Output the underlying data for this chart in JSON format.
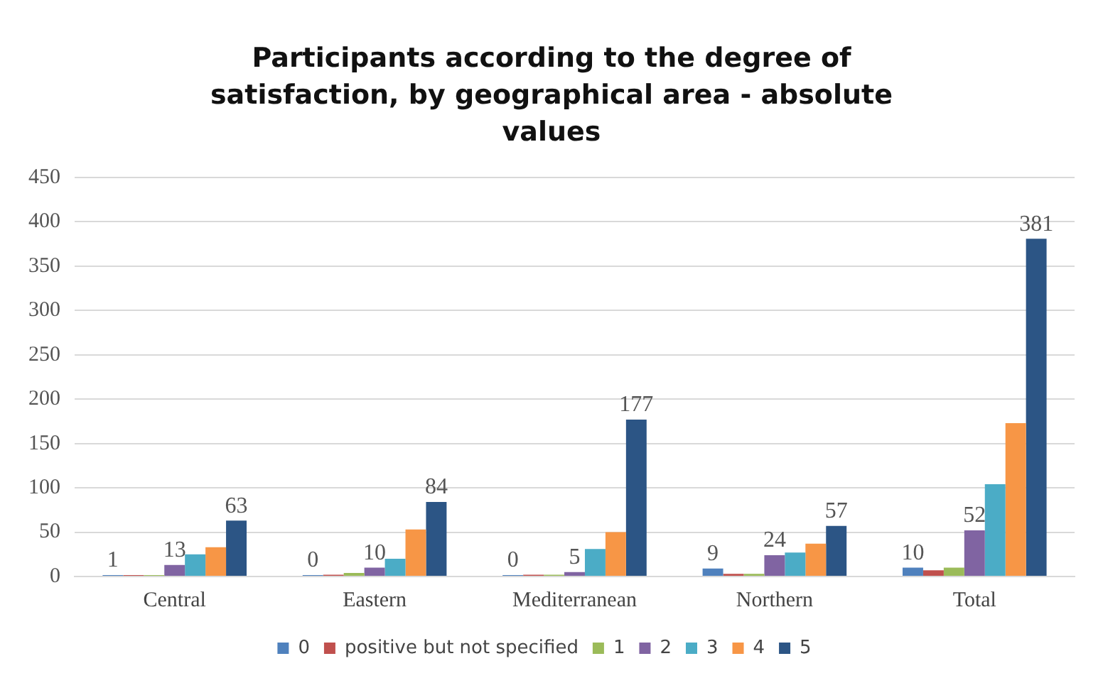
{
  "chart_data": {
    "type": "bar",
    "title": "Participants according to the degree of satisfaction, by geographical area - absolute values",
    "categories": [
      "Central",
      "Eastern",
      "Mediterranean",
      "Northern",
      "Total"
    ],
    "series": [
      {
        "name": "0",
        "color": "#4f81bd",
        "values": [
          1,
          0,
          0,
          9,
          10
        ],
        "value_labels": [
          "1",
          "0",
          "0",
          "9",
          "10"
        ]
      },
      {
        "name": "positive but not specified",
        "color": "#c0504d",
        "values": [
          0,
          2,
          2,
          3,
          7
        ]
      },
      {
        "name": "1",
        "color": "#9bbb59",
        "values": [
          1,
          4,
          2,
          3,
          10
        ]
      },
      {
        "name": "2",
        "color": "#8064a2",
        "values": [
          13,
          10,
          5,
          24,
          52
        ],
        "value_labels": [
          "13",
          "10",
          "5",
          "24",
          "52"
        ]
      },
      {
        "name": "3",
        "color": "#4bacc6",
        "values": [
          25,
          20,
          31,
          27,
          104
        ]
      },
      {
        "name": "4",
        "color": "#f79646",
        "values": [
          33,
          53,
          50,
          37,
          173
        ]
      },
      {
        "name": "5",
        "color": "#2c5585",
        "values": [
          63,
          84,
          177,
          57,
          381
        ],
        "value_labels": [
          "63",
          "84",
          "177",
          "57",
          "381"
        ]
      }
    ],
    "ylim": [
      0,
      450
    ],
    "yticks": [
      0,
      50,
      100,
      150,
      200,
      250,
      300,
      350,
      400,
      450
    ],
    "grid": "y",
    "legend": "bottom"
  }
}
